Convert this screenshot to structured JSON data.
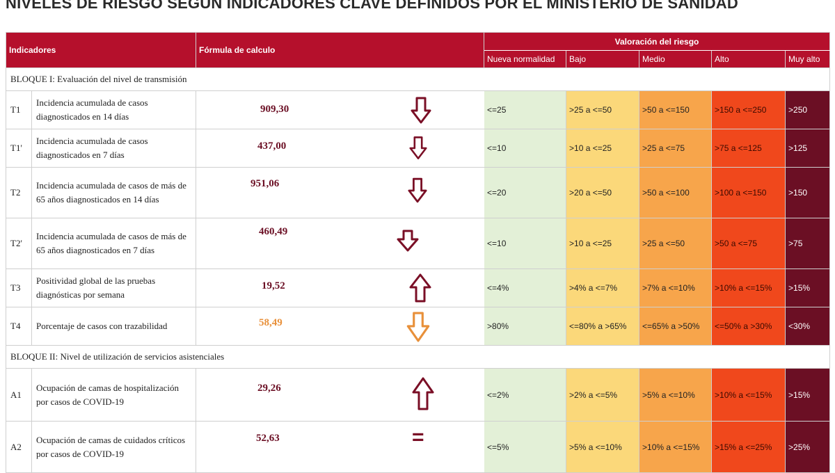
{
  "title": "NIVELES DE RIESGO SEGÚN INDICADORES CLAVE DEFINIDOS POR EL MINISTERIO DE SANIDAD",
  "header": {
    "indicadores": "Indicadores",
    "formula": "Fórmula de calculo",
    "valoracion": "Valoración del riesgo",
    "levels": [
      "Nueva normalidad",
      "Bajo",
      "Medio",
      "Alto",
      "Muy alto"
    ]
  },
  "colors": {
    "header_red": "#b5102c",
    "nueva_normalidad": "#e3f0d7",
    "bajo": "#fbd87a",
    "medio": "#f7a54b",
    "alto": "#f0481c",
    "muy_alto": "#6b0f24",
    "arrow_dark": "#7a0f26",
    "arrow_orange": "#e8903a"
  },
  "blocks": [
    {
      "title": "BLOQUE I: Evaluación del nivel de transmisión",
      "rows": [
        {
          "code": "T1",
          "desc": "Incidencia acumulada de casos diagnosticados en 14 días",
          "value": "909,30",
          "trend": "arrow-down-icon",
          "ranges": [
            "<=25",
            ">25 a <=50",
            ">50 a <=150",
            ">150 a <=250",
            ">250"
          ]
        },
        {
          "code": "T1'",
          "desc": "Incidencia acumulada de casos diagnosticados en 7 días",
          "value": "437,00",
          "trend": "arrow-down-icon",
          "ranges": [
            "<=10",
            ">10 a <=25",
            ">25 a <=75",
            ">75 a <=125",
            ">125"
          ]
        },
        {
          "code": "T2",
          "desc": "Incidencia acumulada de casos de más de 65 años diagnosticados en 14 días",
          "value": "951,06",
          "trend": "arrow-down-icon",
          "ranges": [
            "<=20",
            ">20 a <=50",
            ">50 a <=100",
            ">100 a <=150",
            ">150"
          ]
        },
        {
          "code": "T2'",
          "desc": "Incidencia acumulada de casos de más de 65 años diagnosticados en 7 días",
          "value": "460,49",
          "trend": "arrow-down-icon",
          "ranges": [
            "<=10",
            ">10 a <=25",
            ">25 a <=50",
            ">50 a <=75",
            ">75"
          ]
        },
        {
          "code": "T3",
          "desc": "Positividad global de las pruebas diagnósticas por semana",
          "value": "19,52",
          "trend": "arrow-up-icon",
          "ranges": [
            "<=4%",
            ">4% a <=7%",
            ">7% a <=10%",
            ">10% a <=15%",
            ">15%"
          ]
        },
        {
          "code": "T4",
          "desc": "Porcentaje de casos con trazabilidad",
          "value": "58,49",
          "trend": "arrow-down-orange-icon",
          "ranges": [
            ">80%",
            "<=80% a >65%",
            "<=65% a >50%",
            "<=50% a >30%",
            "<30%"
          ]
        }
      ]
    },
    {
      "title": "BLOQUE II: Nivel de utilización de servicios asistenciales",
      "rows": [
        {
          "code": "A1",
          "desc": "Ocupación de camas de hospitalización por casos de COVID-19",
          "value": "29,26",
          "trend": "arrow-up-icon",
          "ranges": [
            "<=2%",
            ">2% a <=5%",
            ">5% a <=10%",
            ">10% a <=15%",
            ">15%"
          ]
        },
        {
          "code": "A2",
          "desc": "Ocupación de camas de cuidados críticos por casos de COVID-19",
          "value": "52,63",
          "trend": "equals-icon",
          "ranges": [
            "<=5%",
            ">5% a <=10%",
            ">10% a <=15%",
            ">15% a <=25%",
            ">25%"
          ]
        }
      ]
    }
  ]
}
